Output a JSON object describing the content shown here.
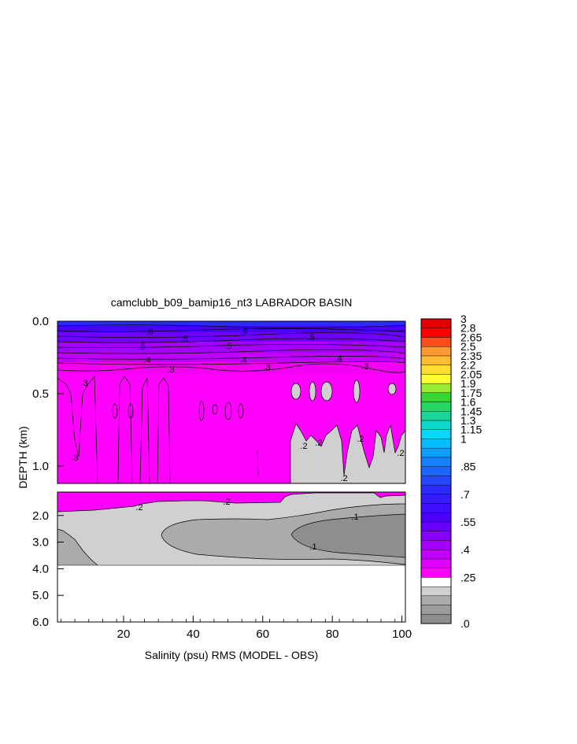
{
  "chart_data": {
    "type": "heatmap",
    "title": "camclubb_b09_bamip16_nt3 LABRADOR BASIN",
    "xlabel": "Salinity (psu) RMS (MODEL - OBS)",
    "ylabel": "DEPTH (km)",
    "xlim": [
      1,
      101
    ],
    "x_ticks": [
      20,
      40,
      60,
      80,
      100
    ],
    "x_tick_labels": [
      "20",
      "40",
      "60",
      "80",
      "100"
    ],
    "upper_panel": {
      "ylim": [
        0.0,
        1.12
      ],
      "y_ticks": [
        0.0,
        0.5,
        1.0
      ],
      "y_tick_labels": [
        "0.0",
        "0.5",
        "1.0"
      ]
    },
    "lower_panel": {
      "ylim": [
        1.12,
        6.0
      ],
      "y_ticks": [
        2.0,
        3.0,
        4.0,
        5.0,
        6.0
      ],
      "y_tick_labels": [
        "2.0",
        "3.0",
        "4.0",
        "5.0",
        "6.0"
      ],
      "data_bottom_km": 3.9
    },
    "colorbar": {
      "levels": [
        0.0,
        0.05,
        0.1,
        0.15,
        0.2,
        0.25,
        0.3,
        0.35,
        0.4,
        0.45,
        0.5,
        0.55,
        0.6,
        0.65,
        0.7,
        0.75,
        0.8,
        0.85,
        0.9,
        0.95,
        1.0,
        1.15,
        1.3,
        1.45,
        1.6,
        1.75,
        1.9,
        2.05,
        2.2,
        2.35,
        2.5,
        2.65,
        2.8,
        3.0
      ],
      "labels": [
        {
          "value": 3.0,
          "text": "3"
        },
        {
          "value": 2.8,
          "text": "2.8"
        },
        {
          "value": 2.65,
          "text": "2.65"
        },
        {
          "value": 2.5,
          "text": "2.5"
        },
        {
          "value": 2.35,
          "text": "2.35"
        },
        {
          "value": 2.2,
          "text": "2.2"
        },
        {
          "value": 2.05,
          "text": "2.05"
        },
        {
          "value": 1.9,
          "text": "1.9"
        },
        {
          "value": 1.75,
          "text": "1.75"
        },
        {
          "value": 1.6,
          "text": "1.6"
        },
        {
          "value": 1.45,
          "text": "1.45"
        },
        {
          "value": 1.3,
          "text": "1.3"
        },
        {
          "value": 1.15,
          "text": "1.15"
        },
        {
          "value": 1.0,
          "text": "1"
        },
        {
          "value": 0.85,
          "text": ".85"
        },
        {
          "value": 0.7,
          "text": ".7"
        },
        {
          "value": 0.55,
          "text": ".55"
        },
        {
          "value": 0.4,
          "text": ".4"
        },
        {
          "value": 0.25,
          "text": ".25"
        },
        {
          "value": 0.0,
          "text": ".0"
        }
      ],
      "colors": {
        "grey_dark": "#8e8e8e",
        "grey_mid": "#ababab",
        "grey_light": "#d0d0d0",
        "magenta": "#ff00ff",
        "violet": "#a300ff",
        "purple": "#7000ff",
        "indigo": "#4b00ff",
        "blue": "#2b2bff",
        "cyan": "#00d8ff",
        "green": "#33d633",
        "yellow": "#ffff33",
        "orange": "#ff9933",
        "red": "#ff0000",
        "darkred": "#c00000"
      }
    },
    "contour_labels": [
      ".6",
      ".6",
      ".5",
      ".5",
      ".5",
      ".5",
      ".4",
      ".4",
      ".4",
      ".3",
      ".3",
      ".3",
      ".3",
      ".3",
      ".2",
      ".2",
      ".2",
      ".2",
      ".2",
      ".2",
      ".2",
      ".1",
      ".1"
    ]
  }
}
